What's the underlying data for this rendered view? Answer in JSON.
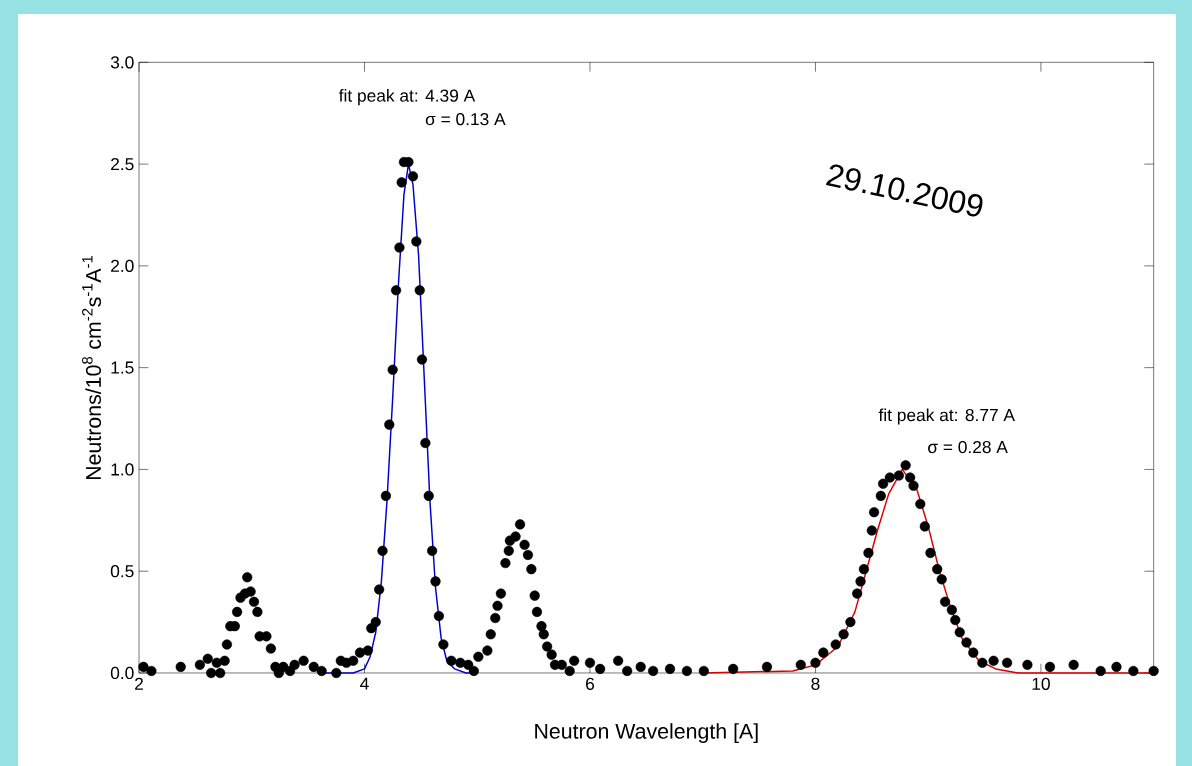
{
  "chart_data": {
    "type": "scatter",
    "xlabel": "Neutron Wavelength [A]",
    "ylabel": "Neutrons/10$^{8}$ cm$^{-2}$s$^{-1}$A$^{-1}$",
    "xlim": [
      2,
      11
    ],
    "ylim": [
      0,
      3.0
    ],
    "xticks": [
      2,
      4,
      6,
      8,
      10
    ],
    "yticks": [
      {
        "value": 0,
        "label": "0.0"
      },
      0.5,
      {
        "value": 1,
        "label": "1.0"
      },
      1.5,
      {
        "value": 2,
        "label": "2.0"
      },
      2.5,
      {
        "value": 3,
        "label": "3.0"
      }
    ],
    "annotations": [
      "fit peak at: 4.39 A",
      "σ = 0.13 A",
      "fit peak at: 8.77 A",
      "σ = 0.28 A",
      "29.10.2009"
    ],
    "series": [
      {
        "type": "scatter",
        "marker": "circle",
        "color": "#000000",
        "x": [
          2.04,
          2.11,
          2.37,
          2.54,
          2.61,
          2.64,
          2.69,
          2.72,
          2.76,
          2.78,
          2.81,
          2.85,
          2.87,
          2.9,
          2.94,
          2.96,
          2.99,
          3.02,
          3.05,
          3.07,
          3.13,
          3.17,
          3.21,
          3.24,
          3.28,
          3.34,
          3.38,
          3.46,
          3.55,
          3.62,
          3.75,
          3.79,
          3.84,
          3.9,
          3.96,
          4.03,
          4.06,
          4.1,
          4.13,
          4.16,
          4.19,
          4.22,
          4.25,
          4.28,
          4.31,
          4.33,
          4.35,
          4.39,
          4.43,
          4.46,
          4.49,
          4.51,
          4.54,
          4.57,
          4.6,
          4.63,
          4.66,
          4.7,
          4.77,
          4.85,
          4.92,
          4.97,
          5.01,
          5.09,
          5.12,
          5.16,
          5.18,
          5.21,
          5.25,
          5.28,
          5.29,
          5.34,
          5.38,
          5.42,
          5.45,
          5.48,
          5.51,
          5.53,
          5.57,
          5.59,
          5.62,
          5.66,
          5.69,
          5.75,
          5.82,
          5.86,
          6.0,
          6.09,
          6.25,
          6.33,
          6.45,
          6.56,
          6.71,
          6.86,
          7.01,
          7.27,
          7.57,
          7.87,
          8.0,
          8.07,
          8.18,
          8.25,
          8.31,
          8.37,
          8.4,
          8.43,
          8.47,
          8.5,
          8.52,
          8.58,
          8.6,
          8.66,
          8.74,
          8.8,
          8.84,
          8.87,
          8.93,
          8.97,
          9.02,
          9.08,
          9.12,
          9.15,
          9.21,
          9.24,
          9.28,
          9.34,
          9.4,
          9.48,
          9.58,
          9.7,
          9.88,
          10.08,
          10.29,
          10.53,
          10.67,
          10.82,
          11.0
        ],
        "values": [
          0.03,
          0.01,
          0.03,
          0.04,
          0.07,
          0.0,
          0.05,
          0.0,
          0.06,
          0.14,
          0.23,
          0.23,
          0.3,
          0.37,
          0.39,
          0.47,
          0.4,
          0.35,
          0.3,
          0.18,
          0.18,
          0.12,
          0.03,
          0.0,
          0.03,
          0.01,
          0.04,
          0.06,
          0.03,
          0.01,
          0.0,
          0.06,
          0.05,
          0.06,
          0.1,
          0.11,
          0.22,
          0.25,
          0.41,
          0.6,
          0.87,
          1.22,
          1.49,
          1.88,
          2.09,
          2.41,
          2.51,
          2.51,
          2.44,
          2.12,
          1.88,
          1.54,
          1.13,
          0.87,
          0.6,
          0.45,
          0.28,
          0.14,
          0.06,
          0.05,
          0.04,
          0.01,
          0.08,
          0.11,
          0.19,
          0.27,
          0.33,
          0.39,
          0.54,
          0.6,
          0.65,
          0.67,
          0.73,
          0.63,
          0.58,
          0.51,
          0.38,
          0.3,
          0.23,
          0.19,
          0.13,
          0.09,
          0.04,
          0.04,
          0.01,
          0.06,
          0.05,
          0.02,
          0.06,
          0.01,
          0.03,
          0.01,
          0.02,
          0.01,
          0.01,
          0.02,
          0.03,
          0.04,
          0.05,
          0.1,
          0.14,
          0.19,
          0.25,
          0.39,
          0.45,
          0.51,
          0.59,
          0.7,
          0.79,
          0.87,
          0.93,
          0.96,
          0.97,
          1.02,
          0.96,
          0.92,
          0.83,
          0.72,
          0.59,
          0.51,
          0.46,
          0.35,
          0.31,
          0.26,
          0.2,
          0.15,
          0.1,
          0.05,
          0.06,
          0.05,
          0.04,
          0.03,
          0.04,
          0.01,
          0.03,
          0.01,
          0.01
        ]
      },
      {
        "type": "line",
        "marker": "none",
        "color": "#0000cc",
        "x": [
          3.6,
          3.9,
          4.0,
          4.05,
          4.1,
          4.15,
          4.2,
          4.25,
          4.3,
          4.35,
          4.39,
          4.43,
          4.48,
          4.53,
          4.58,
          4.63,
          4.68,
          4.73,
          4.8,
          4.9,
          4.95
        ],
        "values": [
          0,
          0,
          0.02,
          0.08,
          0.2,
          0.45,
          0.85,
          1.35,
          1.9,
          2.35,
          2.5,
          2.4,
          2.05,
          1.45,
          0.85,
          0.42,
          0.17,
          0.06,
          0.02,
          0,
          0
        ]
      },
      {
        "type": "line",
        "marker": "none",
        "color": "#dd0000",
        "x": [
          7.0,
          7.8,
          8.0,
          8.2,
          8.35,
          8.45,
          8.55,
          8.65,
          8.77,
          8.9,
          9.0,
          9.1,
          9.2,
          9.3,
          9.45,
          9.6,
          9.8,
          11.0
        ],
        "values": [
          0,
          0.01,
          0.04,
          0.13,
          0.3,
          0.5,
          0.7,
          0.88,
          1.0,
          0.9,
          0.72,
          0.5,
          0.32,
          0.17,
          0.06,
          0.02,
          0.0,
          0
        ]
      }
    ]
  }
}
